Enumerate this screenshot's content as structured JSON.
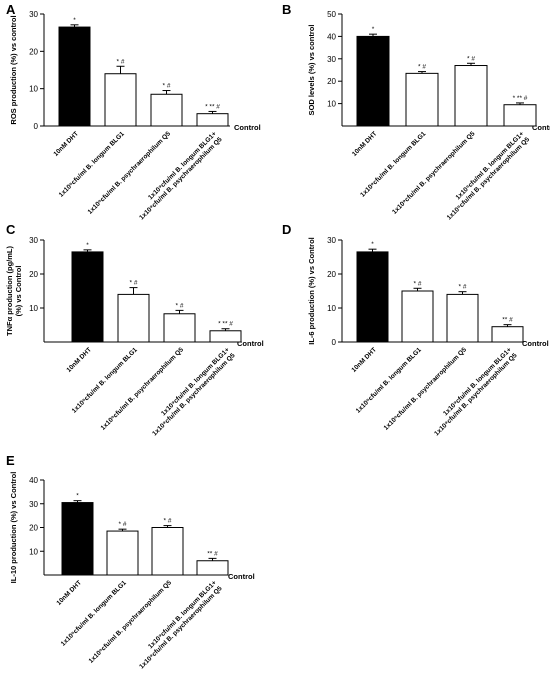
{
  "chart_data": [
    {
      "panel": "A",
      "type": "bar",
      "ylabel": "ROS production (%) vs control",
      "xlabel": "",
      "baseline_label": "Control",
      "ylim": [
        0,
        30
      ],
      "yticks": [
        "0",
        "10",
        "20",
        "30"
      ],
      "categories": [
        "10nM DHT",
        "1x10⁹cfu/ml B. longum BLG1",
        "1x10⁹cfu/ml B. psychraerophilum Q5",
        "1x10⁹cfu/ml B. longum BLG1+|1x10⁹cfu/ml B. psychraerophilum Q5"
      ],
      "values": [
        26.5,
        14,
        8.5,
        3.3
      ],
      "errors": [
        0.6,
        2.0,
        1.0,
        0.6
      ],
      "annotations": [
        "*",
        "* #",
        "* #",
        "* ** #"
      ],
      "fills": [
        "#000000",
        "#ffffff",
        "#ffffff",
        "#ffffff"
      ]
    },
    {
      "panel": "B",
      "type": "bar",
      "ylabel": "SOD levels (%) vs control",
      "xlabel": "",
      "baseline_label": "Control",
      "ylim": [
        0,
        50
      ],
      "yticks": [
        "10",
        "20",
        "30",
        "40",
        "50"
      ],
      "categories": [
        "10nM DHT",
        "1x10⁹cfu/ml B. longum BLG1",
        "1x10⁹cfu/ml B. psychraerophilum Q5",
        "1x10⁹cfu/ml B. longum BLG1+|1x10⁹cfu/ml B. psychraerophilum Q5"
      ],
      "values": [
        40,
        23.5,
        27,
        9.5
      ],
      "errors": [
        1.0,
        0.8,
        1.0,
        0.8
      ],
      "annotations": [
        "*",
        "* #",
        "* #",
        "* ** #"
      ],
      "fills": [
        "#000000",
        "#ffffff",
        "#ffffff",
        "#ffffff"
      ]
    },
    {
      "panel": "C",
      "type": "bar",
      "ylabel": "TNFα production (pg/mL)|(%) vs Control",
      "xlabel": "",
      "baseline_label": "Control",
      "ylim": [
        0,
        30
      ],
      "yticks": [
        "10",
        "20",
        "30"
      ],
      "categories": [
        "10nM DHT",
        "1x10⁹cfu/ml B. longum BLG1",
        "1x10⁹cfu/ml B. psychraerophilum Q5",
        "1x10⁹cfu/ml B. longum BLG1+|1x10⁹cfu/ml B. psychraerophilum Q5"
      ],
      "values": [
        26.5,
        14,
        8.3,
        3.3
      ],
      "errors": [
        0.6,
        2.0,
        1.0,
        0.6
      ],
      "annotations": [
        "*",
        "* #",
        "* #",
        "* ** #"
      ],
      "fills": [
        "#000000",
        "#ffffff",
        "#ffffff",
        "#ffffff"
      ]
    },
    {
      "panel": "D",
      "type": "bar",
      "ylabel": "IL-6 production (%) vs Control",
      "xlabel": "",
      "baseline_label": "Control",
      "ylim": [
        0,
        30
      ],
      "yticks": [
        "0",
        "10",
        "20",
        "30"
      ],
      "categories": [
        "10nM DHT",
        "1x10⁹cfu/ml B. longum BLG1",
        "1x10⁹cfu/ml B. psychraerophilum Q5",
        "1x10⁹cfu/ml B. longum BLG1+|1x10⁹cfu/ml B. psychraerophilum Q5"
      ],
      "values": [
        26.5,
        15,
        14,
        4.5
      ],
      "errors": [
        0.8,
        0.8,
        0.8,
        0.6
      ],
      "annotations": [
        "*",
        "* #",
        "* #",
        "** #"
      ],
      "fills": [
        "#000000",
        "#ffffff",
        "#ffffff",
        "#ffffff"
      ]
    },
    {
      "panel": "E",
      "type": "bar",
      "ylabel": "IL-10 production (%) vs Control",
      "xlabel": "",
      "baseline_label": "Control",
      "ylim": [
        0,
        40
      ],
      "yticks": [
        "10",
        "20",
        "30",
        "40"
      ],
      "categories": [
        "10nM DHT",
        "1x10⁹cfu/ml B. longum BLG1",
        "1x10⁹cfu/ml B. psychraerophilum Q5",
        "1x10⁹cfu/ml B. longum BLG1+|1x10⁹cfu/ml B. psychraerophilum Q5"
      ],
      "values": [
        30.5,
        18.5,
        20,
        6
      ],
      "errors": [
        0.8,
        0.8,
        0.8,
        1.0
      ],
      "annotations": [
        "*",
        "* #",
        "* #",
        "** #"
      ],
      "fills": [
        "#000000",
        "#ffffff",
        "#ffffff",
        "#ffffff"
      ]
    }
  ]
}
